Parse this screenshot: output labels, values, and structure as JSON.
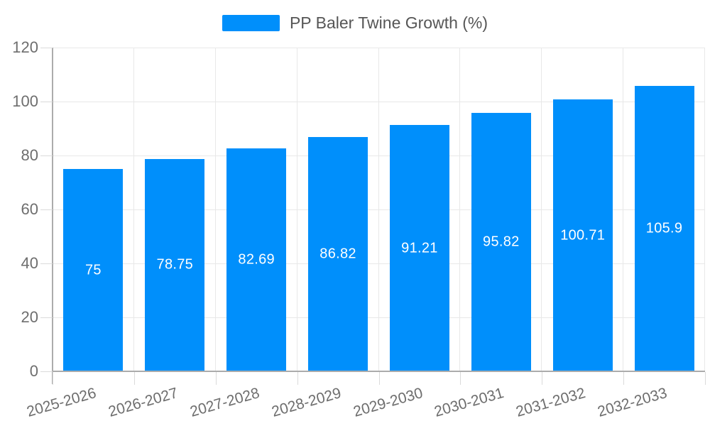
{
  "chart_data": {
    "type": "bar",
    "title": "PP Baler Twine Growth (%)",
    "categories": [
      "2025-2026",
      "2026-2027",
      "2027-2028",
      "2028-2029",
      "2029-2030",
      "2030-2031",
      "2031-2032",
      "2032-2033"
    ],
    "values": [
      75,
      78.75,
      82.69,
      86.82,
      91.21,
      95.82,
      100.71,
      105.9
    ],
    "value_labels": [
      "75",
      "78.75",
      "82.69",
      "86.82",
      "91.21",
      "95.82",
      "100.71",
      "105.9"
    ],
    "xlabel": "",
    "ylabel": "",
    "ylim": [
      0,
      120
    ],
    "yticks": [
      0,
      20,
      40,
      60,
      80,
      100,
      120
    ],
    "ytick_labels": [
      "0",
      "20",
      "40",
      "60",
      "80",
      "100",
      "120"
    ],
    "grid": true,
    "legend_position": "top",
    "x_label_rotation_deg": -16,
    "colors": {
      "bar": "#008FFB",
      "bar_value_label": "#FFFFFF",
      "axis_text": "#6E6E6E",
      "legend_text": "#565656",
      "grid": "#E8E8E8",
      "axis_line": "#ACACAC",
      "tick": "#DADADA"
    }
  }
}
